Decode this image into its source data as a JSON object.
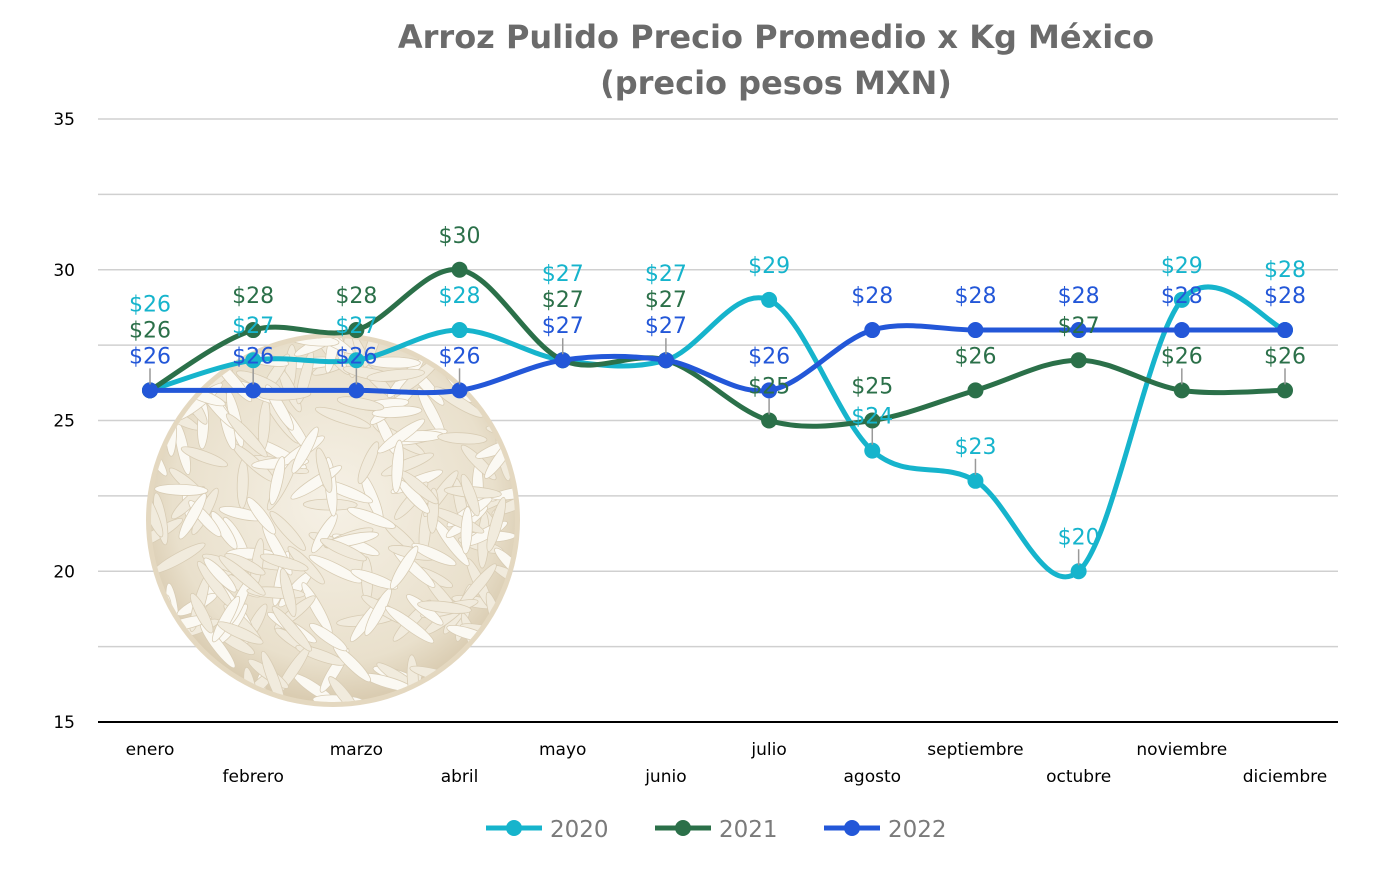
{
  "chart_data": {
    "type": "line",
    "title": "Arroz Pulido Precio Promedio x Kg México",
    "subtitle": "(precio pesos MXN)",
    "xlabel": "",
    "ylabel": "",
    "ylim": [
      15,
      35
    ],
    "yticks": [
      15,
      20,
      25,
      30,
      35
    ],
    "grid": true,
    "legend": "bottom",
    "label_prefix": "$",
    "categories": [
      "enero",
      "febrero",
      "marzo",
      "abril",
      "mayo",
      "junio",
      "julio",
      "agosto",
      "septiembre",
      "octubre",
      "noviembre",
      "diciembre"
    ],
    "series": [
      {
        "name": "2020",
        "color": "#16b4cc",
        "values": [
          26,
          27,
          27,
          28,
          27,
          27,
          29,
          24,
          23,
          20,
          29,
          28
        ]
      },
      {
        "name": "2021",
        "color": "#2b7049",
        "values": [
          26,
          28,
          28,
          30,
          27,
          27,
          25,
          25,
          26,
          27,
          26,
          26
        ]
      },
      {
        "name": "2022",
        "color": "#2357d8",
        "values": [
          26,
          26,
          26,
          26,
          27,
          27,
          26,
          28,
          28,
          28,
          28,
          28
        ]
      }
    ]
  }
}
